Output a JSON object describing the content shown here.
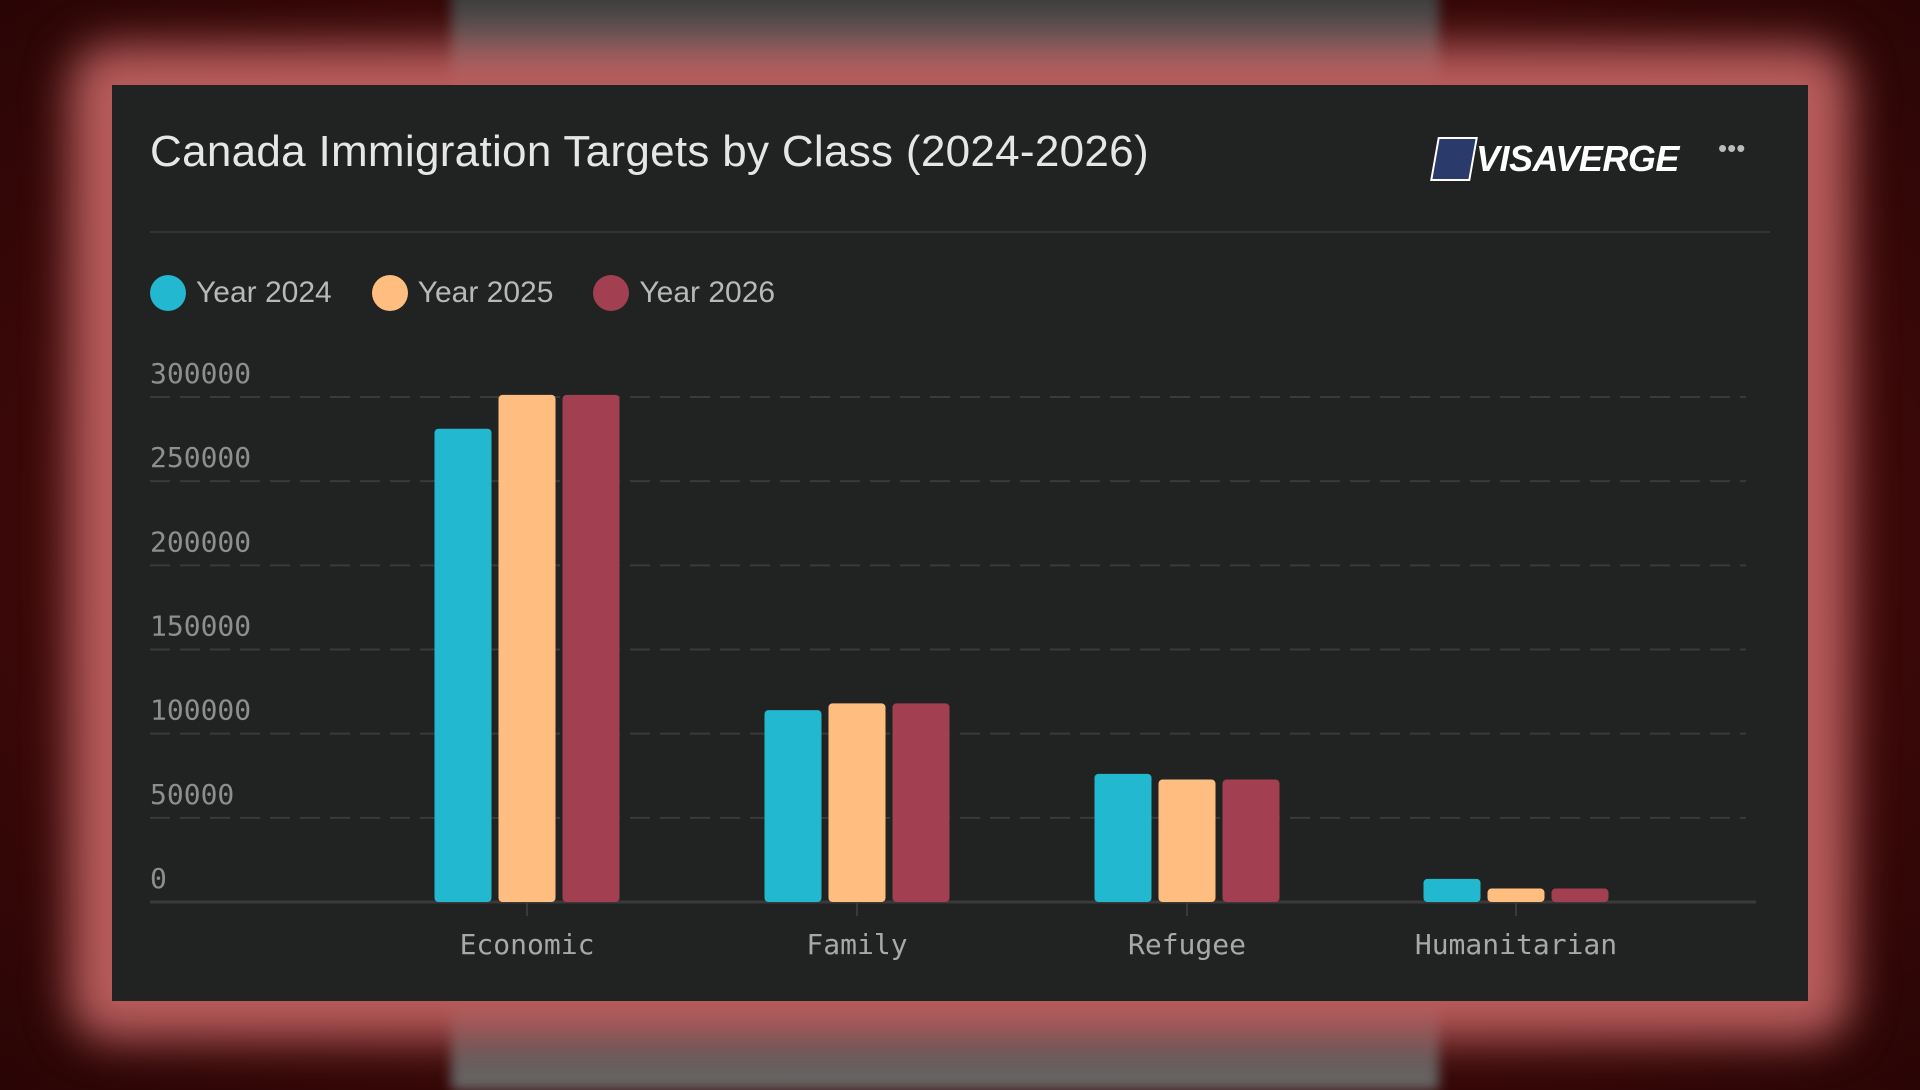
{
  "title": "Canada Immigration Targets by Class (2024-2026)",
  "logo_text": "VISAVERGE",
  "menu_icon": "more-horizontal-icon",
  "chart_data": {
    "type": "bar",
    "title": "Canada Immigration Targets by Class (2024-2026)",
    "categories": [
      "Economic",
      "Family",
      "Refugee",
      "Humanitarian"
    ],
    "series": [
      {
        "name": "Year 2024",
        "color": "#22b8cf",
        "values": [
          281135,
          114000,
          76115,
          13750
        ]
      },
      {
        "name": "Year 2025",
        "color": "#ffbe80",
        "values": [
          301250,
          118000,
          72750,
          8000
        ]
      },
      {
        "name": "Year 2026",
        "color": "#a23f50",
        "values": [
          301250,
          118000,
          72750,
          8000
        ]
      }
    ],
    "yticks": [
      "0",
      "50000",
      "100000",
      "150000",
      "200000",
      "250000",
      "300000"
    ],
    "ylim": [
      0,
      300000
    ],
    "grid": true,
    "legend": "top-left",
    "xlabel": "",
    "ylabel": ""
  }
}
